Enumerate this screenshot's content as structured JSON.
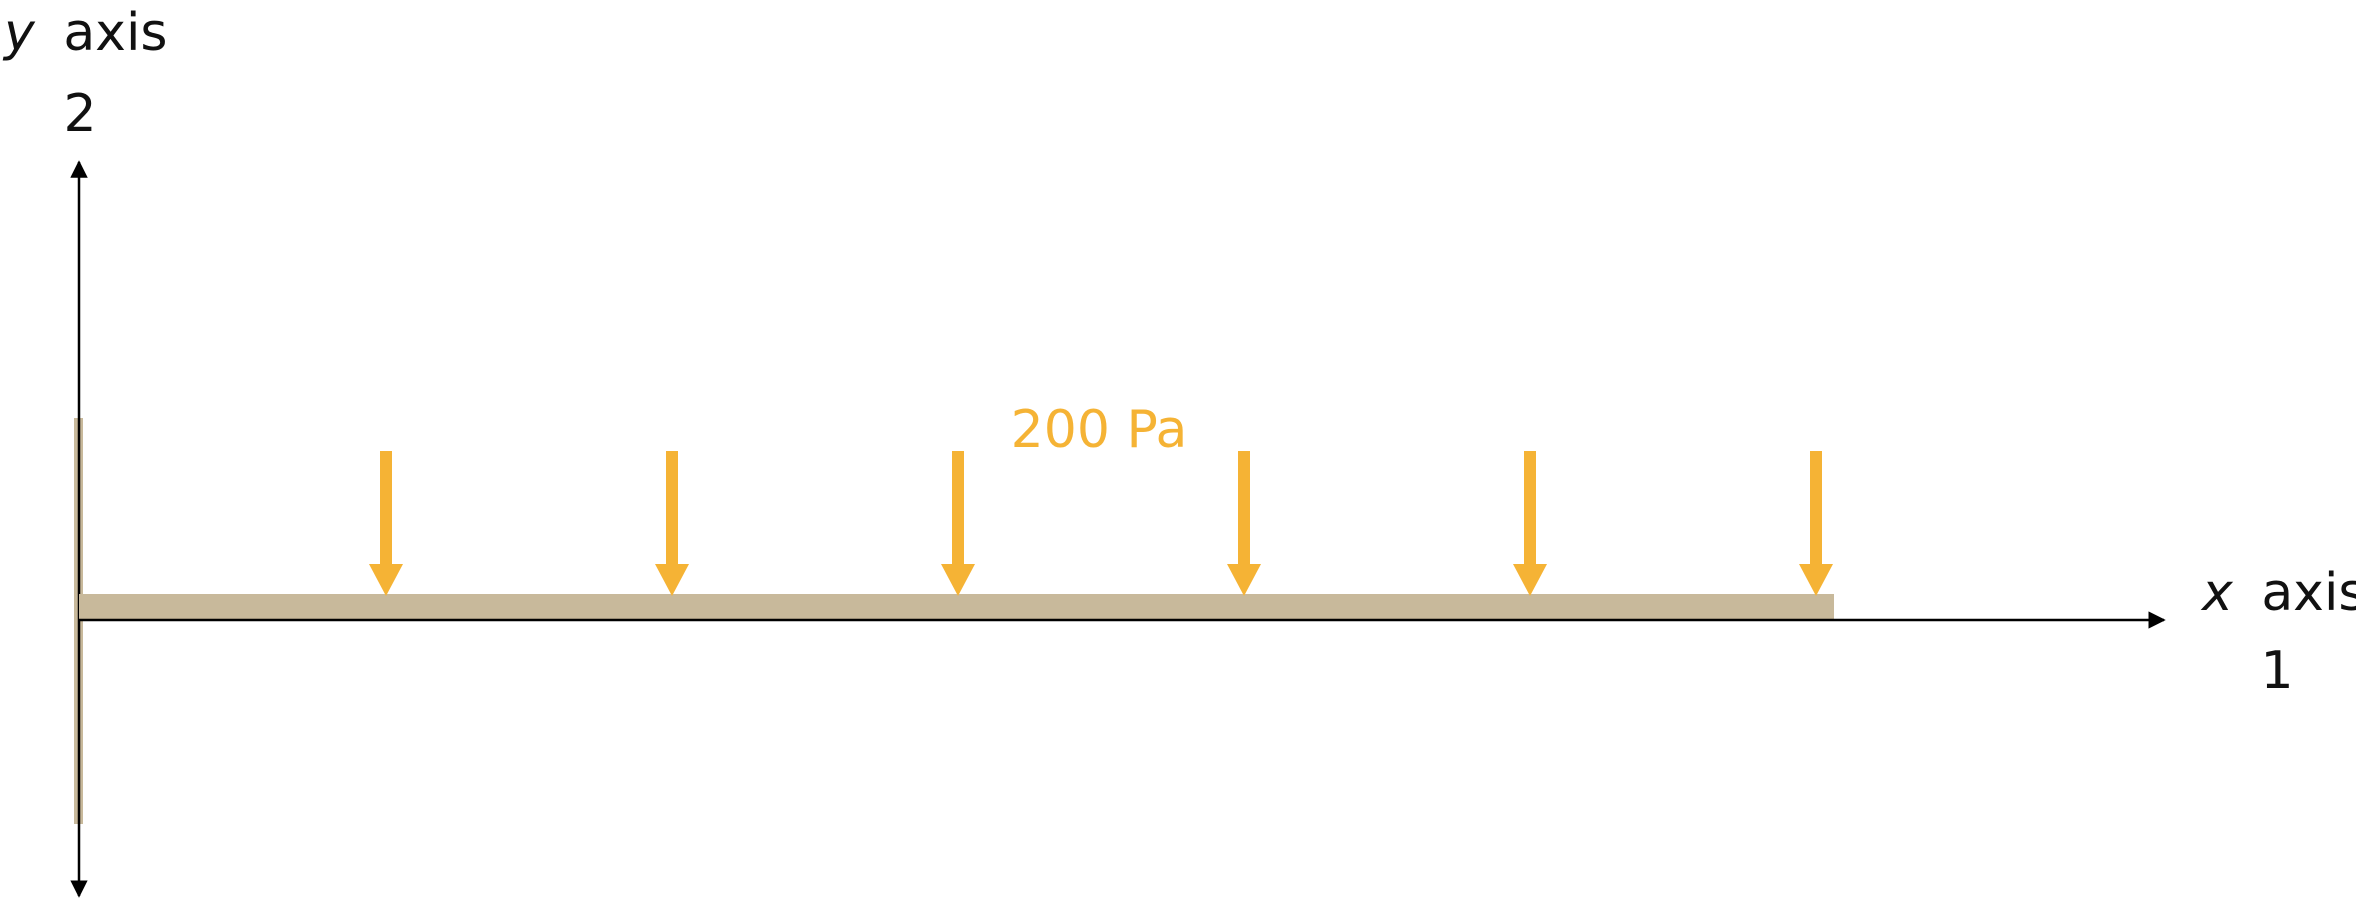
{
  "diagram": {
    "y_axis": {
      "variable": "y",
      "label": "axis",
      "index": "2"
    },
    "x_axis": {
      "variable": "x",
      "label": "axis",
      "index": "1"
    },
    "load": {
      "label": "200 Pa",
      "arrow_count": 6
    },
    "colors": {
      "beam": "#c8b99b",
      "load": "#f5b335",
      "axis": "#000000",
      "text": "#111111"
    }
  }
}
